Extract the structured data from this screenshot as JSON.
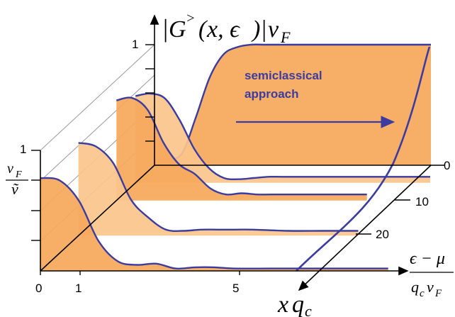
{
  "chart_data": {
    "type": "line",
    "title": "|G^>(x, ε)| v_F",
    "xlabel": "(ε − μ) / (q_c v_F)",
    "ylabel": "|G^>(x, ε)| v_F",
    "depth_label": "x q_c",
    "inset_label": "v_F / ṽ",
    "annotation": "semiclassical approach",
    "x_ticks": [
      "0",
      "1",
      "5"
    ],
    "y_ticks": [
      "1",
      "1"
    ],
    "depth_ticks": [
      "0",
      "10",
      "20"
    ],
    "xlim": [
      0,
      10
    ],
    "ylim": [
      0,
      1
    ],
    "colors": {
      "fill": "#f6a85b",
      "fill_light": "#fbc48a",
      "line": "#3c3ca0",
      "axis": "#000000",
      "guide": "#999999"
    },
    "series": [
      {
        "depth": 0,
        "x": [
          0,
          0.5,
          1,
          1.5,
          2,
          2.5,
          3,
          3.5,
          4,
          4.5,
          5,
          6,
          7,
          8,
          9,
          10
        ],
        "y": [
          0.05,
          0.05,
          0.1,
          0.4,
          0.73,
          0.92,
          0.98,
          1.0,
          1.0,
          1.0,
          1.0,
          1.0,
          1.0,
          1.0,
          1.0,
          1.0
        ]
      },
      {
        "depth": 5,
        "x": [
          0,
          0.5,
          1,
          1.5,
          2,
          2.5,
          3,
          3.5,
          4,
          4.5,
          5,
          6,
          7,
          8,
          9,
          10
        ],
        "y": [
          0.72,
          0.74,
          0.7,
          0.52,
          0.28,
          0.12,
          0.04,
          0.03,
          0.04,
          0.05,
          0.05,
          0.05,
          0.05,
          0.05,
          0.05,
          0.05
        ]
      },
      {
        "depth": 10,
        "x": [
          0,
          0.5,
          1,
          1.5,
          2,
          2.5,
          3,
          3.5,
          4,
          4.5,
          5,
          6,
          7,
          8
        ],
        "y": [
          0.83,
          0.85,
          0.75,
          0.48,
          0.3,
          0.22,
          0.1,
          0.05,
          0.06,
          0.05,
          0.05,
          0.05,
          0.05,
          0.05
        ]
      },
      {
        "depth": 20,
        "x": [
          0,
          0.5,
          1,
          1.5,
          2,
          2.5,
          3,
          3.5,
          4,
          4.5,
          5,
          6,
          7,
          8
        ],
        "y": [
          0.77,
          0.74,
          0.6,
          0.3,
          0.15,
          0.05,
          0.04,
          0.05,
          0.05,
          0.05,
          0.05,
          0.04,
          0.04,
          0.04
        ]
      },
      {
        "depth": 30,
        "x": [
          0,
          0.5,
          1,
          1.5,
          2,
          2.5,
          3,
          3.5,
          4,
          4.5,
          5,
          6,
          7,
          8,
          9
        ],
        "y": [
          0.77,
          0.75,
          0.58,
          0.25,
          0.08,
          0.05,
          0.06,
          0.02,
          0.03,
          0.03,
          0.02,
          0.02,
          0.02,
          0.02,
          0.02
        ]
      }
    ]
  }
}
